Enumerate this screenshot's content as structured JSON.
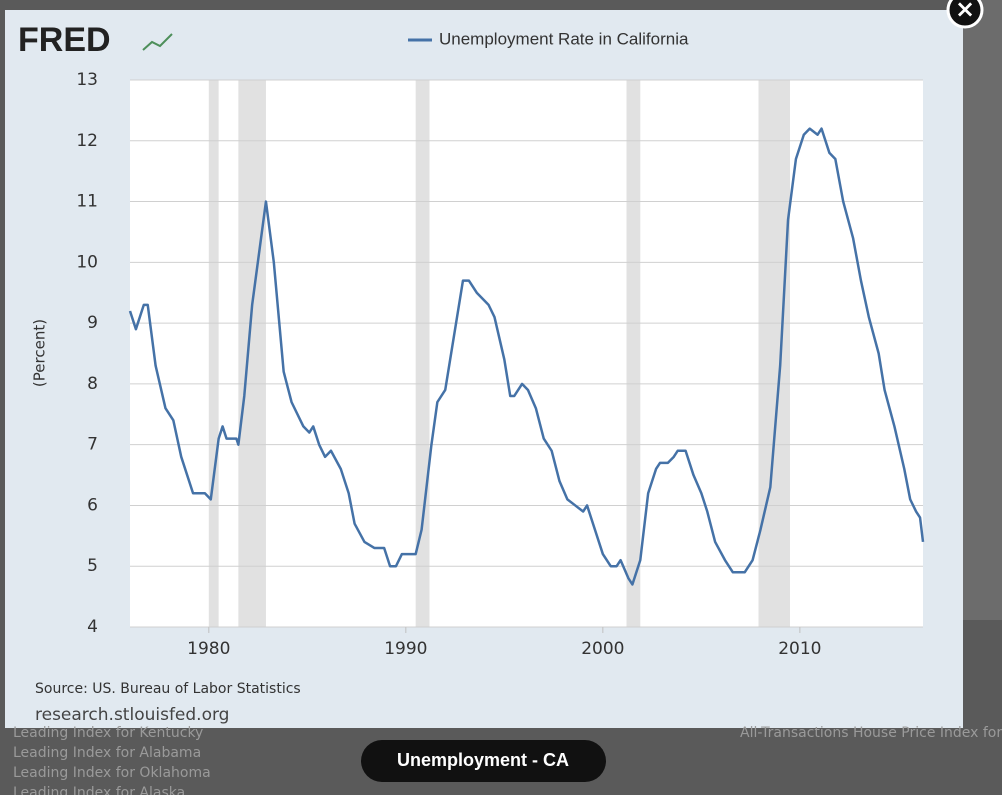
{
  "chart_data": {
    "type": "line",
    "ylabel": "(Percent)",
    "x": [
      1976.0,
      1976.3,
      1976.7,
      1976.9,
      1977.3,
      1977.8,
      1978.2,
      1978.6,
      1979.2,
      1979.8,
      1980.1,
      1980.5,
      1980.7,
      1980.9,
      1981.4,
      1981.5,
      1981.8,
      1982.2,
      1982.9,
      1983.3,
      1983.8,
      1984.2,
      1984.8,
      1985.1,
      1985.3,
      1985.6,
      1985.9,
      1986.2,
      1986.7,
      1987.1,
      1987.4,
      1987.9,
      1988.4,
      1988.9,
      1989.2,
      1989.5,
      1989.8,
      1990.5,
      1990.8,
      1991.3,
      1991.6,
      1992.0,
      1992.4,
      1992.9,
      1993.2,
      1993.6,
      1994.2,
      1994.5,
      1995.0,
      1995.3,
      1995.5,
      1995.9,
      1996.2,
      1996.6,
      1997.0,
      1997.4,
      1997.8,
      1998.2,
      1998.6,
      1999.0,
      1999.2,
      1999.6,
      2000.0,
      2000.4,
      2000.7,
      2000.9,
      2001.3,
      2001.5,
      2001.9,
      2002.3,
      2002.7,
      2002.9,
      2003.3,
      2003.6,
      2003.8,
      2004.2,
      2004.6,
      2005.0,
      2005.3,
      2005.7,
      2006.2,
      2006.6,
      2007.2,
      2007.6,
      2008.0,
      2008.5,
      2009.0,
      2009.4,
      2009.8,
      2010.2,
      2010.5,
      2010.9,
      2011.1,
      2011.5,
      2011.8,
      2012.2,
      2012.7,
      2013.1,
      2013.5,
      2014.0,
      2014.3,
      2014.8,
      2015.3,
      2015.6,
      2015.9,
      2016.1,
      2016.25
    ],
    "series": [
      {
        "name": "Unemployment Rate in California",
        "color": "#4572a7",
        "values": [
          9.2,
          8.9,
          9.3,
          9.3,
          8.3,
          7.6,
          7.4,
          6.8,
          6.2,
          6.2,
          6.1,
          7.1,
          7.3,
          7.1,
          7.1,
          7.0,
          7.8,
          9.3,
          11.0,
          10.0,
          8.2,
          7.7,
          7.3,
          7.2,
          7.3,
          7.0,
          6.8,
          6.9,
          6.6,
          6.2,
          5.7,
          5.4,
          5.3,
          5.3,
          5.0,
          5.0,
          5.2,
          5.2,
          5.6,
          7.0,
          7.7,
          7.9,
          8.7,
          9.7,
          9.7,
          9.5,
          9.3,
          9.1,
          8.4,
          7.8,
          7.8,
          8.0,
          7.9,
          7.6,
          7.1,
          6.9,
          6.4,
          6.1,
          6.0,
          5.9,
          6.0,
          5.6,
          5.2,
          5.0,
          5.0,
          5.1,
          4.8,
          4.7,
          5.1,
          6.2,
          6.6,
          6.7,
          6.7,
          6.8,
          6.9,
          6.9,
          6.5,
          6.2,
          5.9,
          5.4,
          5.1,
          4.9,
          4.9,
          5.1,
          5.6,
          6.3,
          8.3,
          10.7,
          11.7,
          12.1,
          12.2,
          12.1,
          12.2,
          11.8,
          11.7,
          11.0,
          10.4,
          9.7,
          9.1,
          8.5,
          7.9,
          7.3,
          6.6,
          6.1,
          5.9,
          5.8,
          5.4
        ]
      }
    ],
    "recessions": [
      [
        1980.0,
        1980.5
      ],
      [
        1981.5,
        1982.9
      ],
      [
        1990.5,
        1991.2
      ],
      [
        2001.2,
        2001.9
      ],
      [
        2007.9,
        2009.5
      ]
    ],
    "recession_color": "#e1e1e1",
    "xlim": [
      1976.0,
      2016.25
    ],
    "xticks": [
      1980,
      1990,
      2000,
      2010
    ],
    "ylim": [
      4,
      13
    ],
    "yticks": [
      4,
      5,
      6,
      7,
      8,
      9,
      10,
      11,
      12,
      13
    ],
    "grid": true
  },
  "logo": "FRED",
  "source": "Source: US. Bureau of Labor Statistics",
  "site": "research.stlouisfed.org",
  "close": "×",
  "button": "Unemployment - CA",
  "background": {
    "left_items": [
      "Leading Index for Kentucky",
      "Leading Index for Alabama",
      "Leading Index for Oklahoma",
      "Leading Index for Alaska"
    ],
    "right_items": [
      "All-Transactions House Price Index for"
    ]
  }
}
